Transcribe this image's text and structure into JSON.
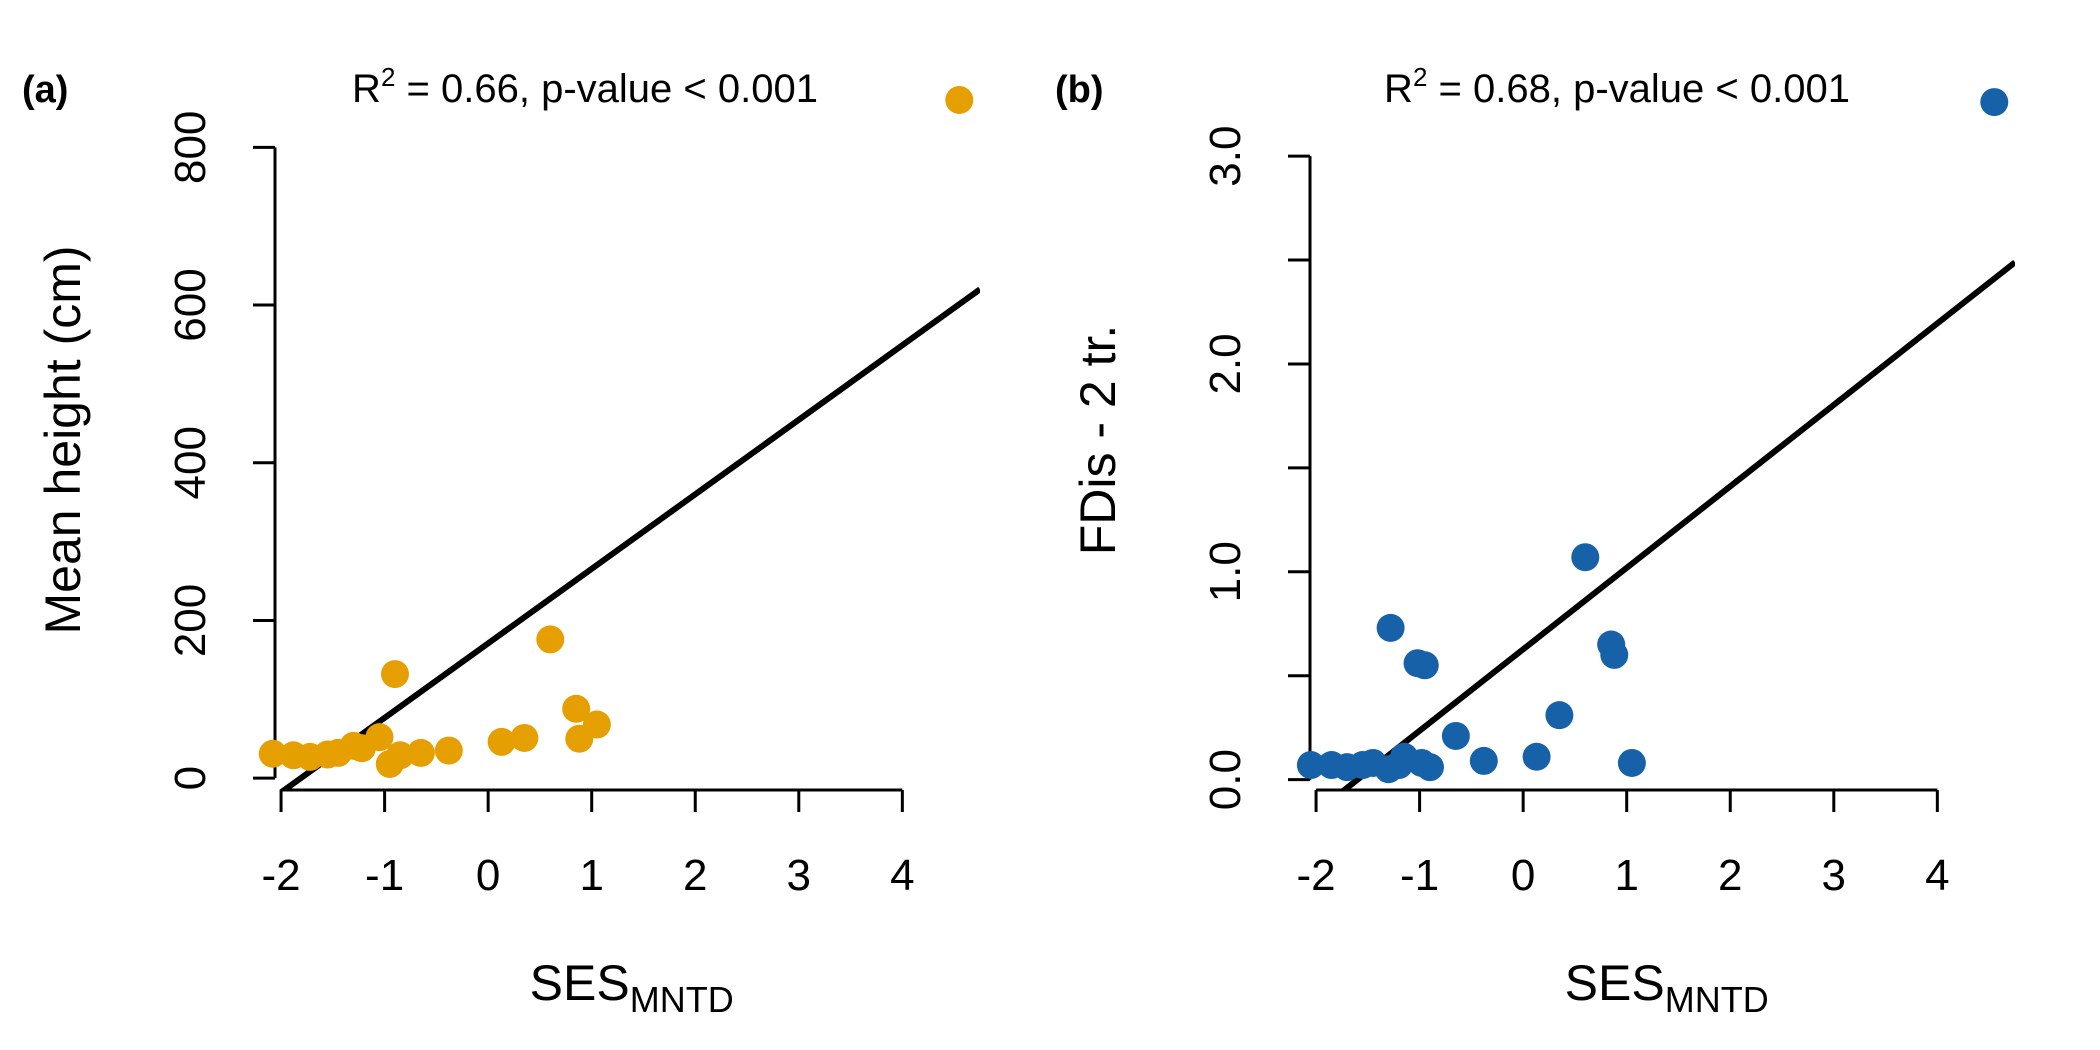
{
  "chart_data": [
    {
      "type": "scatter",
      "panel_label": "(a)",
      "title": {
        "prefix": "R",
        "superscript": "2",
        "suffix": " = 0.66, p-value < 0.001"
      },
      "xlabel": {
        "main": "SES",
        "subscript": "MNTD"
      },
      "ylabel": "Mean height (cm)",
      "xlim": [
        -2.3,
        4.75
      ],
      "ylim": [
        -15,
        860
      ],
      "x_ticks": [
        -2,
        -1,
        0,
        1,
        2,
        3,
        4
      ],
      "x_tick_labels": [
        "-2",
        "-1",
        "0",
        "1",
        "2",
        "3",
        "4"
      ],
      "y_ticks": [
        0,
        200,
        400,
        600,
        800
      ],
      "y_tick_labels": [
        "0",
        "200",
        "400",
        "600",
        "800"
      ],
      "color": "#E69F00",
      "fit_line": {
        "intercept": 171,
        "slope": 94.5
      },
      "points": [
        {
          "x": -2.08,
          "y": 31
        },
        {
          "x": -1.88,
          "y": 29
        },
        {
          "x": -1.72,
          "y": 27
        },
        {
          "x": -1.55,
          "y": 30
        },
        {
          "x": -1.45,
          "y": 32
        },
        {
          "x": -1.3,
          "y": 41
        },
        {
          "x": -1.22,
          "y": 38
        },
        {
          "x": -1.05,
          "y": 52
        },
        {
          "x": -0.95,
          "y": 18
        },
        {
          "x": -0.9,
          "y": 132
        },
        {
          "x": -0.85,
          "y": 29
        },
        {
          "x": -0.65,
          "y": 32
        },
        {
          "x": -0.38,
          "y": 35
        },
        {
          "x": 0.13,
          "y": 46
        },
        {
          "x": 0.35,
          "y": 51
        },
        {
          "x": 0.6,
          "y": 176
        },
        {
          "x": 0.85,
          "y": 88
        },
        {
          "x": 0.88,
          "y": 50
        },
        {
          "x": 1.05,
          "y": 68
        },
        {
          "x": 4.55,
          "y": 860
        }
      ]
    },
    {
      "type": "scatter",
      "panel_label": "(b)",
      "title": {
        "prefix": "R",
        "superscript": "2",
        "suffix": " = 0.68, p-value < 0.001"
      },
      "xlabel": {
        "main": "SES",
        "subscript": "MNTD"
      },
      "ylabel": "FDis - 2 tr.",
      "xlim": [
        -2.3,
        4.75
      ],
      "ylim": [
        -0.05,
        3.27
      ],
      "x_ticks": [
        -2,
        -1,
        0,
        1,
        2,
        3,
        4
      ],
      "x_tick_labels": [
        "-2",
        "-1",
        "0",
        "1",
        "2",
        "3",
        "4"
      ],
      "y_ticks": [
        0,
        0.5,
        1,
        1.5,
        2,
        2.5,
        3
      ],
      "y_tick_labels": [
        "0.0",
        "",
        "1.0",
        "",
        "2.0",
        "",
        "3.0"
      ],
      "color": "#1761A8",
      "fit_line": {
        "intercept": 0.627,
        "slope": 0.392
      },
      "points": [
        {
          "x": -2.05,
          "y": 0.07
        },
        {
          "x": -1.85,
          "y": 0.07
        },
        {
          "x": -1.7,
          "y": 0.06
        },
        {
          "x": -1.55,
          "y": 0.07
        },
        {
          "x": -1.45,
          "y": 0.08
        },
        {
          "x": -1.3,
          "y": 0.05
        },
        {
          "x": -1.28,
          "y": 0.73
        },
        {
          "x": -1.2,
          "y": 0.07
        },
        {
          "x": -1.15,
          "y": 0.11
        },
        {
          "x": -1.02,
          "y": 0.56
        },
        {
          "x": -0.98,
          "y": 0.08
        },
        {
          "x": -0.95,
          "y": 0.55
        },
        {
          "x": -0.9,
          "y": 0.06
        },
        {
          "x": -0.65,
          "y": 0.21
        },
        {
          "x": -0.38,
          "y": 0.09
        },
        {
          "x": 0.13,
          "y": 0.11
        },
        {
          "x": 0.35,
          "y": 0.31
        },
        {
          "x": 0.6,
          "y": 1.07
        },
        {
          "x": 0.85,
          "y": 0.65
        },
        {
          "x": 0.88,
          "y": 0.6
        },
        {
          "x": 1.05,
          "y": 0.08
        },
        {
          "x": 4.55,
          "y": 3.26
        }
      ]
    }
  ]
}
